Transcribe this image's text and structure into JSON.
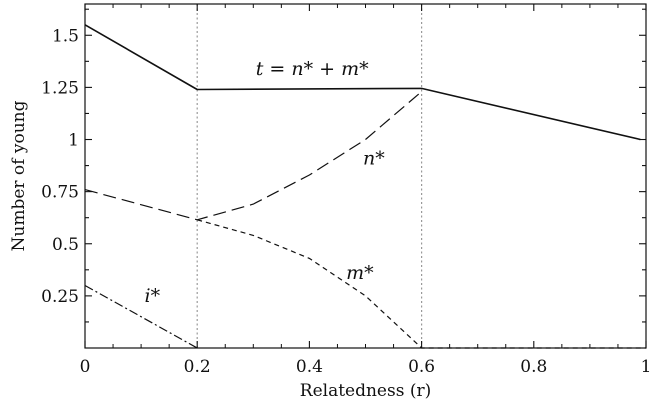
{
  "chart_data": {
    "type": "line",
    "xlabel": "Relatedness (r)",
    "ylabel": "Number of young",
    "xlim": [
      0,
      1
    ],
    "ylim": [
      0,
      1.65
    ],
    "x_ticks": [
      0,
      0.2,
      0.4,
      0.6,
      0.8,
      1
    ],
    "x_tick_labels": [
      "0",
      "0.2",
      "0.4",
      "0.6",
      "0.8",
      "1"
    ],
    "y_ticks": [
      0.25,
      0.5,
      0.75,
      1,
      1.25,
      1.5
    ],
    "y_tick_labels": [
      "0.25",
      "0.5",
      "0.75",
      "1",
      "1.25",
      "1.5"
    ],
    "vertical_reference_lines": [
      0.2,
      0.6
    ],
    "annotations": [
      {
        "text": "t = n* + m*",
        "x": 0.405,
        "y": 1.31
      },
      {
        "text": "n*",
        "x": 0.515,
        "y": 0.88
      },
      {
        "text": "m*",
        "x": 0.49,
        "y": 0.33
      },
      {
        "text": "i*",
        "x": 0.12,
        "y": 0.22
      }
    ],
    "series": [
      {
        "name": "t = n* + m*",
        "style": "solid",
        "x": [
          0,
          0.2,
          0.6,
          0.99
        ],
        "y": [
          1.55,
          1.24,
          1.245,
          1.0
        ]
      },
      {
        "name": "n*",
        "style": "long-dash",
        "x": [
          0,
          0.2,
          0.3,
          0.4,
          0.5,
          0.6
        ],
        "y": [
          0.76,
          0.615,
          0.69,
          0.83,
          1.0,
          1.23
        ]
      },
      {
        "name": "m*",
        "style": "short-dash",
        "x": [
          0.2,
          0.3,
          0.4,
          0.5,
          0.6,
          1.0
        ],
        "y": [
          0.615,
          0.54,
          0.43,
          0.25,
          0.0,
          0.0
        ]
      },
      {
        "name": "i*",
        "style": "dash-dot",
        "x": [
          0,
          0.1,
          0.2
        ],
        "y": [
          0.3,
          0.15,
          0.0
        ]
      }
    ]
  }
}
